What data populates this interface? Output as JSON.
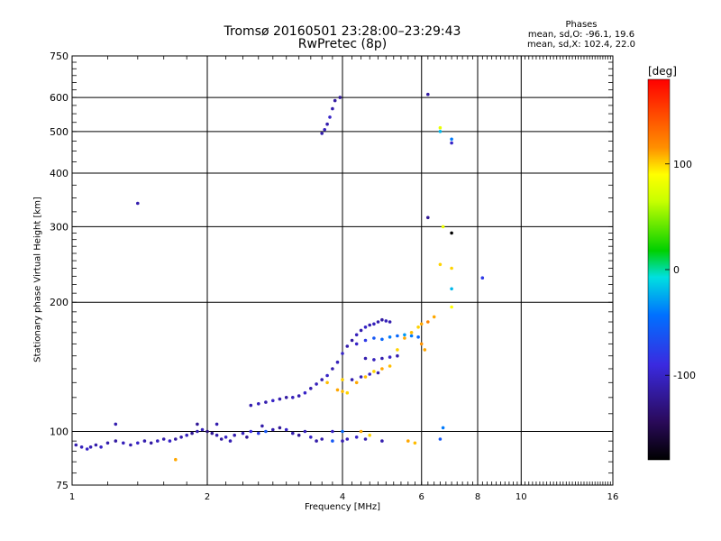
{
  "chart_data": {
    "type": "scatter",
    "title": "Tromsø 20160501 23:28:00–23:29:43",
    "subtitle": "RwPretec (8p)",
    "xlabel": "Frequency [MHz]",
    "ylabel": "Stationary phase Virtual Height [km]",
    "x_scale": "log2",
    "y_scale": "log",
    "xlim": [
      1,
      16
    ],
    "ylim": [
      75,
      750
    ],
    "x_ticks": [
      1,
      2,
      4,
      6,
      8,
      10,
      16
    ],
    "y_ticks": [
      75,
      100,
      200,
      300,
      400,
      500,
      600,
      750
    ],
    "grid": true,
    "colorbar": {
      "label": "[deg]",
      "range": [
        -180,
        180
      ],
      "ticks": [
        100,
        0,
        -100
      ]
    },
    "phase_info": {
      "heading": "Phases",
      "line_o": "mean, sd,O: -96.1, 19.6",
      "line_x": "mean, sd,X: 102.4, 22.0"
    },
    "series": [
      {
        "points": [
          [
            1.02,
            93,
            -110
          ],
          [
            1.05,
            92,
            -105
          ],
          [
            1.08,
            91,
            -100
          ],
          [
            1.1,
            92,
            -108
          ],
          [
            1.13,
            93,
            -112
          ],
          [
            1.16,
            92,
            -100
          ],
          [
            1.2,
            94,
            -110
          ],
          [
            1.25,
            95,
            -115
          ],
          [
            1.3,
            94,
            -105
          ],
          [
            1.35,
            93,
            -110
          ],
          [
            1.4,
            94,
            -100
          ],
          [
            1.45,
            95,
            -110
          ],
          [
            1.5,
            94,
            -115
          ],
          [
            1.55,
            95,
            -105
          ],
          [
            1.6,
            96,
            -110
          ],
          [
            1.65,
            95,
            -100
          ],
          [
            1.7,
            96,
            -115
          ],
          [
            1.75,
            97,
            -110
          ],
          [
            1.8,
            98,
            -105
          ],
          [
            1.85,
            99,
            -120
          ],
          [
            1.9,
            100,
            -110
          ],
          [
            1.95,
            101,
            -105
          ],
          [
            2.0,
            100,
            -130
          ],
          [
            2.05,
            99,
            -120
          ],
          [
            2.1,
            98,
            -110
          ],
          [
            2.2,
            97,
            -100
          ],
          [
            2.3,
            98,
            -110
          ],
          [
            2.4,
            99,
            -105
          ],
          [
            2.5,
            100,
            -90
          ],
          [
            2.6,
            99,
            -80
          ],
          [
            2.7,
            100,
            -60
          ],
          [
            2.8,
            101,
            -110
          ],
          [
            2.9,
            102,
            -120
          ],
          [
            3.0,
            101,
            -100
          ],
          [
            3.1,
            99,
            -110
          ],
          [
            3.2,
            98,
            -120
          ],
          [
            3.4,
            97,
            -100
          ],
          [
            3.6,
            96,
            -110
          ],
          [
            3.8,
            100,
            -100
          ],
          [
            1.25,
            104,
            -110
          ],
          [
            1.9,
            104,
            -120
          ],
          [
            2.1,
            104,
            -110
          ],
          [
            2.15,
            96,
            -115
          ],
          [
            2.25,
            95,
            -108
          ],
          [
            2.45,
            97,
            -118
          ],
          [
            2.65,
            103,
            -112
          ],
          [
            3.3,
            100,
            -105
          ],
          [
            3.5,
            95,
            -112
          ],
          [
            4.0,
            95,
            -110
          ],
          [
            4.1,
            96,
            -105
          ],
          [
            4.3,
            97,
            -100
          ],
          [
            4.5,
            96,
            -110
          ],
          [
            4.9,
            95,
            -110
          ]
        ]
      },
      {
        "points": [
          [
            2.5,
            115,
            -110
          ],
          [
            2.6,
            116,
            -105
          ],
          [
            2.7,
            117,
            -110
          ],
          [
            2.8,
            118,
            -100
          ],
          [
            2.9,
            119,
            -110
          ],
          [
            3.0,
            120,
            -115
          ],
          [
            3.1,
            120,
            -105
          ],
          [
            3.2,
            121,
            -110
          ],
          [
            3.3,
            123,
            -100
          ],
          [
            3.4,
            126,
            -110
          ],
          [
            3.5,
            129,
            -105
          ],
          [
            3.6,
            132,
            -110
          ],
          [
            3.7,
            135,
            -100
          ],
          [
            3.8,
            140,
            -110
          ],
          [
            3.9,
            145,
            -105
          ],
          [
            4.0,
            152,
            -100
          ],
          [
            4.1,
            158,
            -110
          ],
          [
            4.2,
            163,
            -115
          ],
          [
            4.3,
            168,
            -105
          ],
          [
            4.4,
            172,
            -110
          ],
          [
            4.5,
            175,
            -100
          ],
          [
            4.6,
            177,
            -110
          ],
          [
            4.7,
            178,
            -105
          ],
          [
            4.8,
            180,
            -110
          ],
          [
            4.9,
            182,
            -115
          ],
          [
            5.0,
            181,
            -105
          ],
          [
            5.1,
            180,
            -110
          ],
          [
            4.3,
            160,
            -100
          ],
          [
            4.5,
            163,
            -80
          ],
          [
            4.7,
            165,
            -60
          ],
          [
            4.9,
            164,
            -50
          ],
          [
            5.1,
            166,
            -40
          ],
          [
            5.3,
            167,
            -50
          ],
          [
            5.5,
            168,
            -30
          ],
          [
            5.7,
            167,
            -40
          ],
          [
            5.9,
            166,
            -50
          ],
          [
            4.5,
            148,
            -110
          ],
          [
            4.7,
            147,
            -105
          ],
          [
            4.9,
            148,
            -110
          ],
          [
            5.1,
            149,
            -100
          ],
          [
            5.3,
            150,
            -110
          ],
          [
            4.2,
            132,
            -110
          ],
          [
            4.4,
            134,
            -105
          ],
          [
            4.6,
            136,
            -100
          ],
          [
            4.8,
            137,
            -110
          ]
        ]
      },
      {
        "points": [
          [
            3.6,
            495,
            -110
          ],
          [
            3.65,
            505,
            -105
          ],
          [
            3.7,
            520,
            -110
          ],
          [
            3.75,
            540,
            -100
          ],
          [
            3.8,
            565,
            -110
          ],
          [
            3.85,
            590,
            -115
          ],
          [
            3.95,
            600,
            -120
          ],
          [
            6.2,
            610,
            -115
          ],
          [
            6.2,
            315,
            -120
          ],
          [
            6.6,
            510,
            80
          ],
          [
            6.6,
            500,
            -20
          ],
          [
            7.0,
            480,
            -40
          ],
          [
            7.0,
            470,
            -100
          ],
          [
            6.7,
            300,
            80
          ],
          [
            6.6,
            245,
            100
          ],
          [
            7.0,
            290,
            -200
          ],
          [
            7.0,
            240,
            100
          ],
          [
            7.0,
            215,
            -20
          ],
          [
            7.0,
            195,
            90
          ],
          [
            8.2,
            228,
            -80
          ],
          [
            1.4,
            340,
            -110
          ],
          [
            6.7,
            102,
            -40
          ],
          [
            6.6,
            96,
            -60
          ],
          [
            3.8,
            95,
            -60
          ],
          [
            4.0,
            100,
            -50
          ]
        ]
      },
      {
        "points": [
          [
            3.9,
            125,
            110
          ],
          [
            4.0,
            124,
            105
          ],
          [
            4.1,
            123,
            100
          ],
          [
            4.3,
            130,
            110
          ],
          [
            4.5,
            134,
            105
          ],
          [
            4.7,
            138,
            100
          ],
          [
            4.9,
            140,
            110
          ],
          [
            5.1,
            142,
            105
          ],
          [
            5.3,
            155,
            100
          ],
          [
            5.5,
            165,
            110
          ],
          [
            5.7,
            170,
            105
          ],
          [
            5.9,
            175,
            100
          ],
          [
            6.0,
            178,
            110
          ],
          [
            6.2,
            180,
            120
          ],
          [
            6.4,
            185,
            110
          ],
          [
            5.6,
            95,
            110
          ],
          [
            5.8,
            94,
            105
          ],
          [
            4.4,
            100,
            110
          ],
          [
            4.6,
            98,
            100
          ],
          [
            1.7,
            86,
            110
          ],
          [
            3.7,
            130,
            105
          ],
          [
            4.0,
            132,
            100
          ],
          [
            6.0,
            160,
            115
          ],
          [
            6.1,
            155,
            110
          ]
        ]
      }
    ]
  }
}
